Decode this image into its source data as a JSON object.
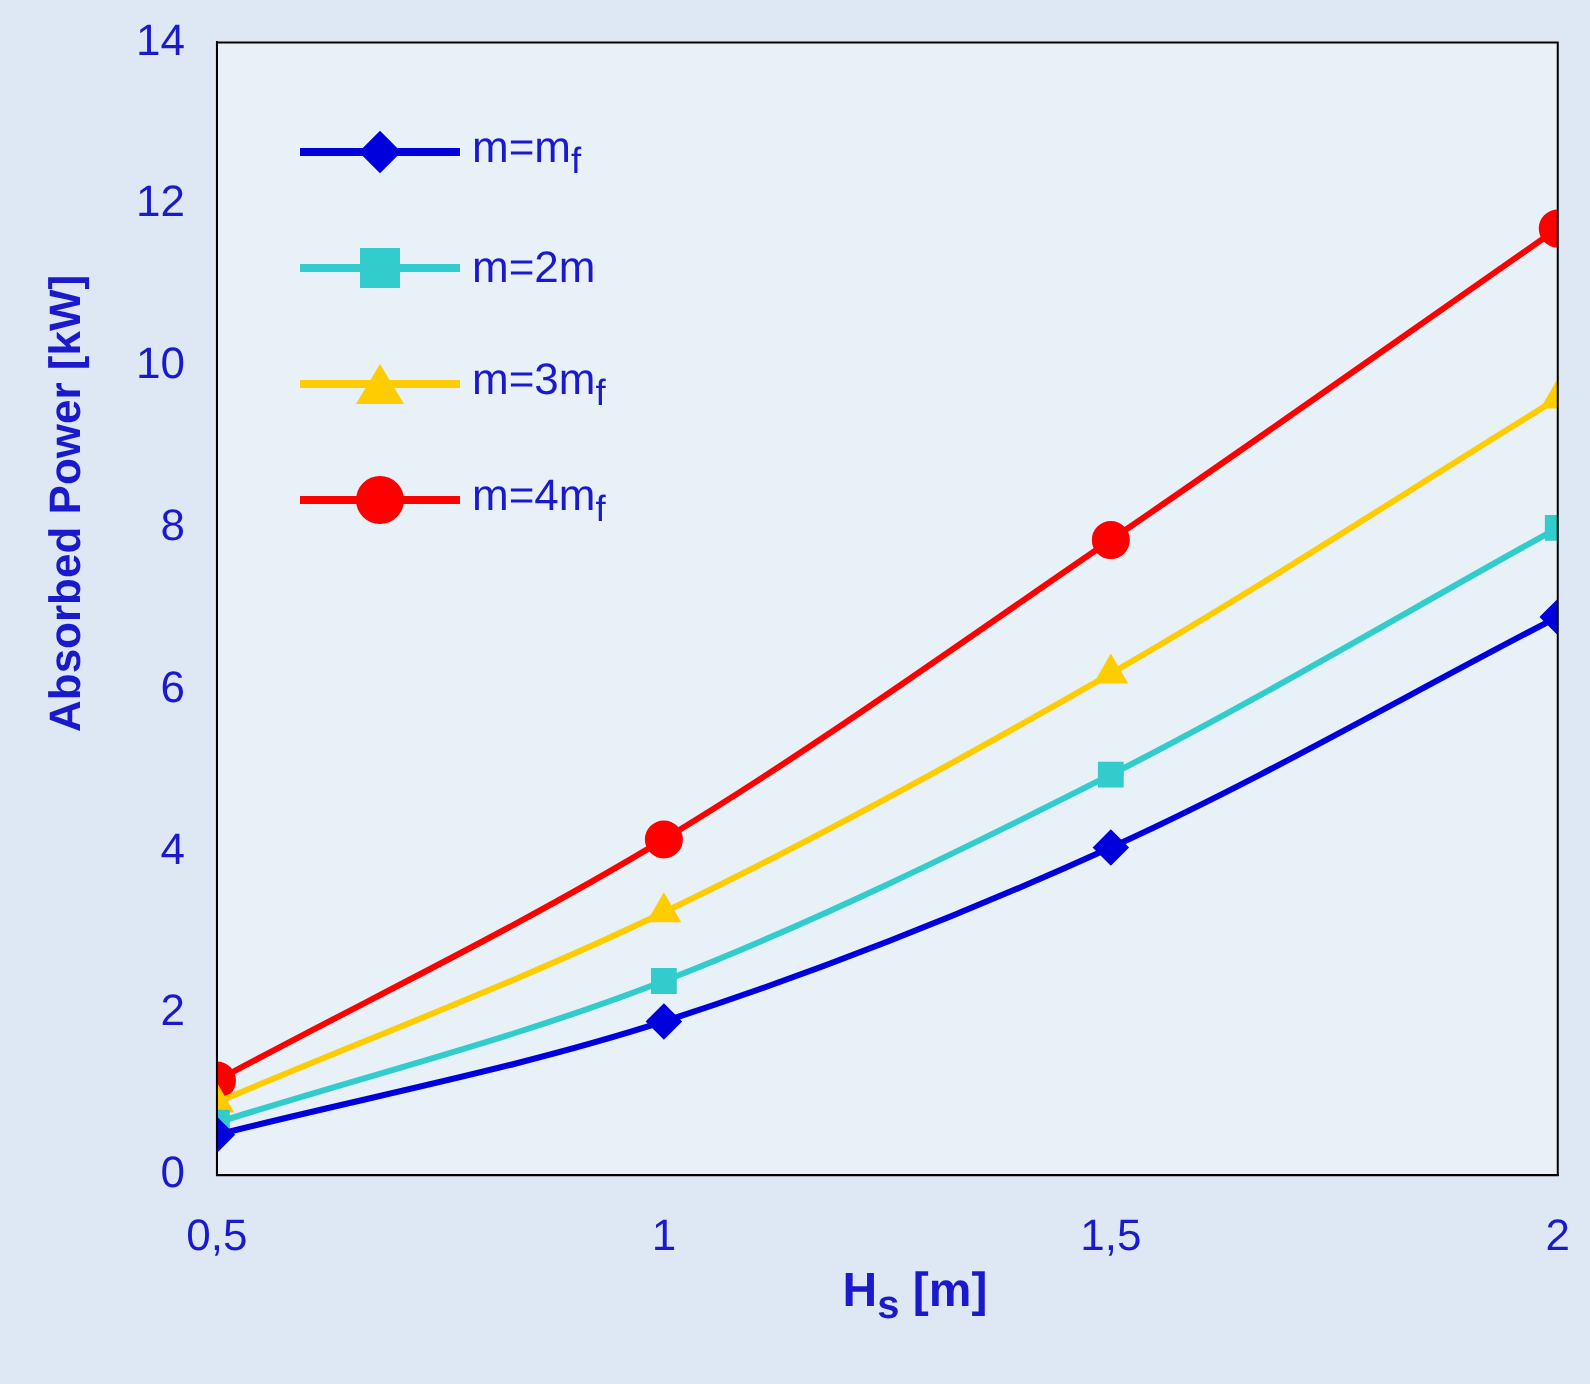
{
  "chart_data": {
    "type": "line",
    "xlabel": "H$_{s}$  [m]",
    "ylabel": "Absorbed Power  [kW]",
    "x": [
      0.5,
      1,
      1.5,
      2
    ],
    "series": [
      {
        "name": "m=m$_{f}$",
        "color": "#0000dd",
        "marker": "diamond",
        "values": [
          0.5,
          1.9,
          4.05,
          6.9
        ]
      },
      {
        "name": "m=2m",
        "color": "#33cccc",
        "marker": "square",
        "values": [
          0.65,
          2.4,
          4.95,
          8.0
        ]
      },
      {
        "name": "m=3m$_{f}$",
        "color": "#ffcc00",
        "marker": "triangle",
        "values": [
          0.9,
          3.25,
          6.2,
          9.6
        ]
      },
      {
        "name": "m=4m$_{f}$",
        "color": "#ff0000",
        "marker": "circle",
        "values": [
          1.17,
          4.15,
          7.85,
          11.7
        ]
      }
    ],
    "xlim": [
      0.5,
      2
    ],
    "xticks": [
      {
        "value": 0.5,
        "label": "0,5"
      },
      1,
      {
        "value": 1.5,
        "label": "1,5"
      },
      2
    ],
    "ylim": [
      0,
      14
    ],
    "yticks": [
      0,
      2,
      4,
      6,
      8,
      10,
      12,
      14
    ],
    "grid": false,
    "legend": "top left",
    "line_style": "solid"
  }
}
